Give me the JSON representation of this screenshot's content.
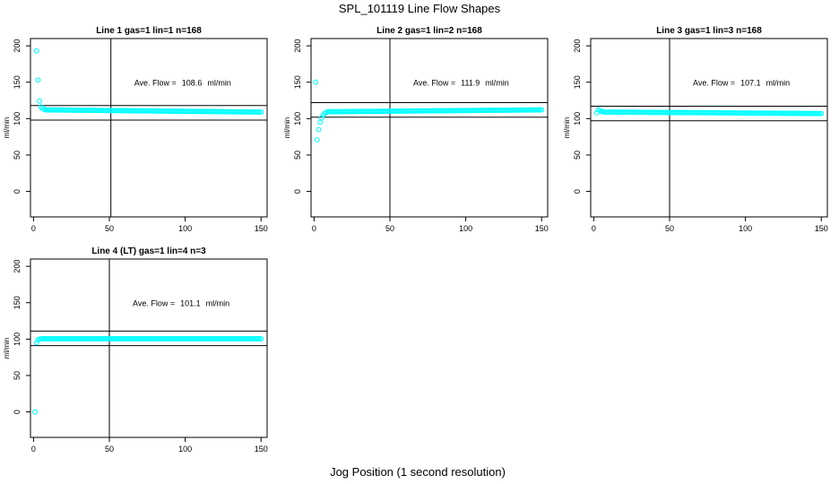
{
  "figure": {
    "title": "SPL_101119  Line Flow Shapes",
    "xlabel": "Jog Position (1 second resolution)"
  },
  "chart_data": [
    {
      "type": "scatter",
      "title": "Line 1 gas=1 lin=1 n=168",
      "xlabel": "",
      "ylabel": "ml/min",
      "xlim": [
        -2,
        154
      ],
      "ylim": [
        -35,
        210
      ],
      "xticks": [
        0,
        50,
        100,
        150
      ],
      "yticks": [
        0,
        50,
        100,
        150,
        200
      ],
      "annotation_label": "Ave. Flow =",
      "annotation_value": "108.6",
      "annotation_unit": "ml/min",
      "vline_x": 51,
      "hlines_y": [
        98,
        118
      ],
      "marker_color": "#00ffff",
      "points": [
        [
          2,
          193
        ],
        [
          3,
          153
        ],
        [
          4,
          124
        ],
        [
          5,
          116
        ],
        [
          6,
          114
        ],
        [
          7,
          113
        ]
      ],
      "plateau": {
        "from": 8,
        "to": 150,
        "start": 112,
        "end": 109
      }
    },
    {
      "type": "scatter",
      "title": "Line 2 gas=1 lin=2 n=168",
      "xlabel": "",
      "ylabel": "ml/min",
      "xlim": [
        -2,
        154
      ],
      "ylim": [
        -35,
        210
      ],
      "xticks": [
        0,
        50,
        100,
        150
      ],
      "yticks": [
        0,
        50,
        100,
        150,
        200
      ],
      "annotation_label": "Ave. Flow =",
      "annotation_value": "111.9",
      "annotation_unit": "ml/min",
      "vline_x": 50,
      "hlines_y": [
        102,
        122
      ],
      "marker_color": "#00ffff",
      "points": [
        [
          1,
          150
        ],
        [
          2,
          71
        ],
        [
          3,
          85
        ],
        [
          4,
          95
        ],
        [
          5,
          101
        ],
        [
          6,
          105
        ],
        [
          7,
          107
        ],
        [
          8,
          108.5
        ]
      ],
      "plateau": {
        "from": 9,
        "to": 150,
        "start": 109.5,
        "end": 112
      }
    },
    {
      "type": "scatter",
      "title": "Line 3 gas=1 lin=3 n=168",
      "xlabel": "",
      "ylabel": "ml/min",
      "xlim": [
        -2,
        154
      ],
      "ylim": [
        -35,
        210
      ],
      "xticks": [
        0,
        50,
        100,
        150
      ],
      "yticks": [
        0,
        50,
        100,
        150,
        200
      ],
      "annotation_label": "Ave. Flow =",
      "annotation_value": "107.1",
      "annotation_unit": "ml/min",
      "vline_x": 50,
      "hlines_y": [
        97,
        117
      ],
      "marker_color": "#00ffff",
      "points": [
        [
          2,
          108
        ],
        [
          3,
          112
        ],
        [
          4,
          111
        ],
        [
          5,
          110
        ],
        [
          6,
          109.5
        ],
        [
          7,
          109
        ]
      ],
      "plateau": {
        "from": 8,
        "to": 150,
        "start": 109,
        "end": 107
      }
    },
    {
      "type": "scatter",
      "title": "Line 4 (LT) gas=1 lin=4 n=3",
      "xlabel": "",
      "ylabel": "ml/min",
      "xlim": [
        -2,
        154
      ],
      "ylim": [
        -35,
        210
      ],
      "xticks": [
        0,
        50,
        100,
        150
      ],
      "yticks": [
        0,
        50,
        100,
        150,
        200
      ],
      "annotation_label": "Ave. Flow =",
      "annotation_value": "101.1",
      "annotation_unit": "ml/min",
      "vline_x": 50,
      "hlines_y": [
        91,
        111
      ],
      "marker_color": "#00ffff",
      "points": [
        [
          1,
          0
        ],
        [
          2,
          95
        ],
        [
          3,
          99
        ],
        [
          4,
          100
        ]
      ],
      "plateau": {
        "from": 5,
        "to": 150,
        "start": 100.5,
        "end": 100.5
      }
    }
  ]
}
